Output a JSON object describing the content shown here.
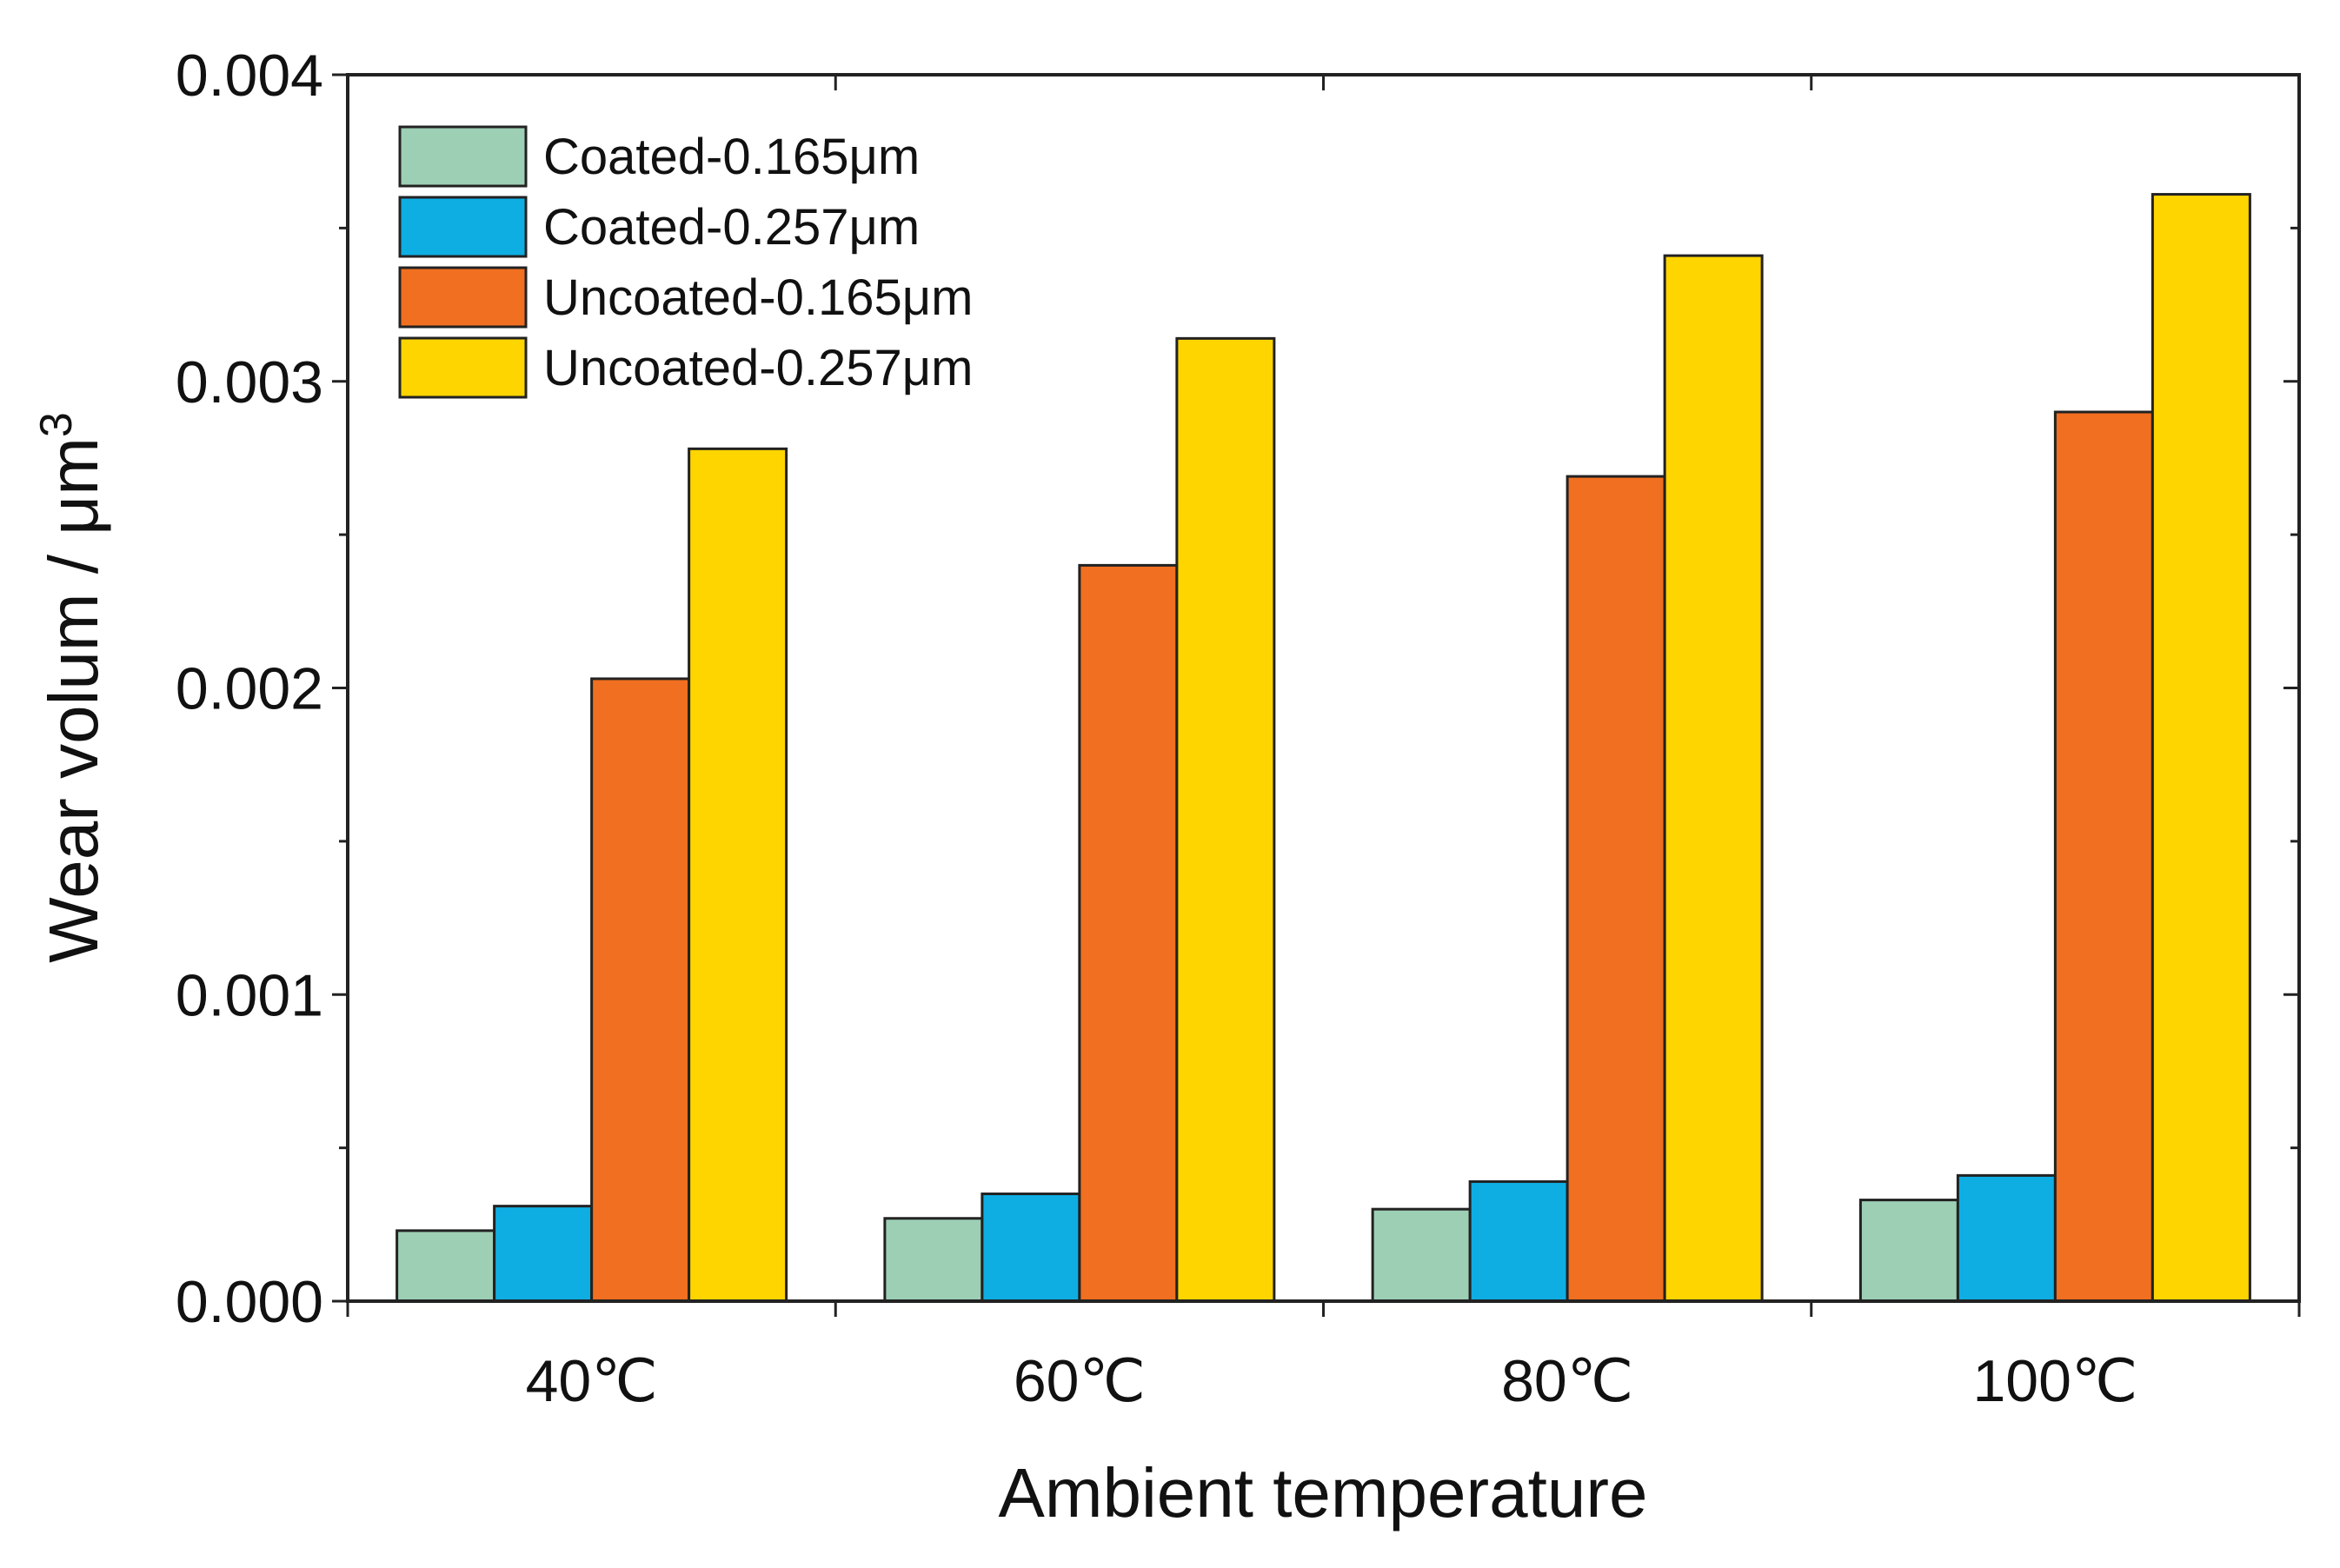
{
  "chart_data": {
    "type": "bar",
    "title": "",
    "xlabel": "Ambient temperature",
    "ylabel": "Wear volum / μm",
    "ylabel_superscript": "3",
    "categories": [
      "40℃",
      "60℃",
      "80℃",
      "100℃"
    ],
    "ylim": [
      0,
      0.004
    ],
    "yticks": [
      "0.000",
      "0.001",
      "0.002",
      "0.003",
      "0.004"
    ],
    "ytick_values": [
      0,
      0.001,
      0.002,
      0.003,
      0.004
    ],
    "grid": false,
    "legend_position": "top-left",
    "series": [
      {
        "name": "Coated-0.165μm",
        "color": "#9dcfb5",
        "values": [
          0.00023,
          0.00027,
          0.0003,
          0.00033
        ]
      },
      {
        "name": "Coated-0.257μm",
        "color": "#0eaee3",
        "values": [
          0.00031,
          0.00035,
          0.00039,
          0.00041
        ]
      },
      {
        "name": "Uncoated-0.165μm",
        "color": "#f06f20",
        "values": [
          0.00203,
          0.0024,
          0.00269,
          0.0029
        ]
      },
      {
        "name": "Uncoated-0.257μm",
        "color": "#ffd500",
        "values": [
          0.00278,
          0.00314,
          0.00341,
          0.00361
        ]
      }
    ]
  }
}
